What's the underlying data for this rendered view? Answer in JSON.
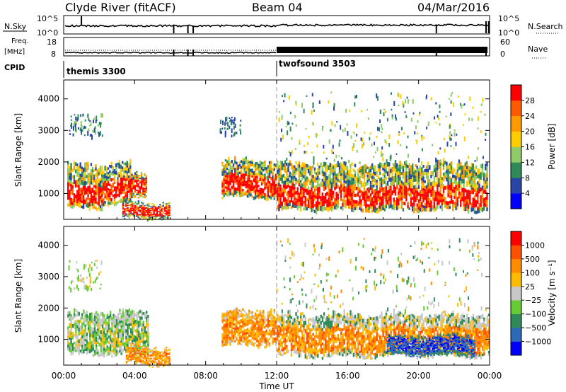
{
  "header": {
    "station": "Clyde River (fitACF)",
    "beam": "Beam 04",
    "date": "04/Mar/2016"
  },
  "noise_panel": {
    "left_label": "N.Sky",
    "left_ticks": [
      "10^5",
      "10^0"
    ],
    "right_ticks": [
      "10^5",
      "10^0"
    ],
    "right_label": "N.Search",
    "right_label_style": "dotted"
  },
  "freq_panel": {
    "left_label_1": "Freq.",
    "left_label_2": "[MHz]",
    "left_ticks": [
      "18",
      "8"
    ],
    "right_ticks": [
      "60",
      "0"
    ],
    "right_label": "Nave",
    "right_label_style": "dotted"
  },
  "cpid": {
    "label": "CPID",
    "modes": [
      {
        "name": "themis 3300",
        "start_hour": 0
      },
      {
        "name": "twofsound 3503",
        "start_hour": 12
      }
    ]
  },
  "x_axis": {
    "label": "Time UT",
    "range_hours": [
      0,
      24
    ],
    "tick_hours": [
      0,
      4,
      8,
      12,
      16,
      20,
      24
    ],
    "tick_labels": [
      "00:00",
      "04:00",
      "08:00",
      "12:00",
      "16:00",
      "20:00",
      "00:00"
    ]
  },
  "power_panel": {
    "ylabel": "Slant Range [km]",
    "ylim": [
      180,
      4600
    ],
    "yticks": [
      1000,
      2000,
      3000,
      4000
    ],
    "colorbar_label": "Power [dB]",
    "colorbar_ticks": [
      "4",
      "8",
      "12",
      "16",
      "20",
      "24",
      "28"
    ],
    "colors": [
      "#0000ff",
      "#2845a8",
      "#2e8b57",
      "#8fcb66",
      "#ffcc00",
      "#ff9900",
      "#ff5a00",
      "#ff0000"
    ]
  },
  "velocity_panel": {
    "ylabel": "Slant Range [km]",
    "ylim": [
      180,
      4600
    ],
    "yticks": [
      1000,
      2000,
      3000,
      4000
    ],
    "colorbar_label": "Velocity [m s⁻¹]",
    "colorbar_ticks": [
      "1000",
      "500",
      "100",
      "25",
      "−25",
      "−100",
      "−500",
      "−1000"
    ],
    "colors": [
      "#0000ff",
      "#2a6ab8",
      "#2e8b57",
      "#66cc33",
      "#c8c8c8",
      "#ffbb00",
      "#ff8c00",
      "#ff5000",
      "#ff0000"
    ]
  },
  "chart_data": {
    "type": "heatmap",
    "x_unit": "hours UT",
    "power_bands": [
      {
        "start": 0.2,
        "end": 2.2,
        "core_km": [
          650,
          1250
        ],
        "outer_km": [
          500,
          1900
        ],
        "color_bias": "strong"
      },
      {
        "start": 2.2,
        "end": 3.8,
        "core_km": [
          800,
          1450
        ],
        "outer_km": [
          650,
          1950
        ],
        "color_bias": "medium"
      },
      {
        "start": 3.8,
        "end": 4.7,
        "core_km": [
          1000,
          1450
        ],
        "outer_km": [
          850,
          1600
        ],
        "color_bias": "strong"
      },
      {
        "start": 3.3,
        "end": 6.0,
        "core_km": [
          300,
          600
        ],
        "outer_km": [
          200,
          700
        ],
        "color_bias": "medium"
      },
      {
        "start": 8.9,
        "end": 12.0,
        "core_km": [
          1000,
          1550
        ],
        "outer_km": [
          850,
          2050
        ],
        "color_bias": "strong"
      },
      {
        "start": 12.0,
        "end": 23.9,
        "core_km": [
          600,
          1200
        ],
        "outer_km": [
          450,
          1950
        ],
        "color_bias": "strong"
      }
    ],
    "velocity_bands": [
      {
        "start": 0.2,
        "end": 4.8,
        "core_km": [
          650,
          1550
        ],
        "outer_km": [
          500,
          1850
        ],
        "palette": "mixed_green_gray"
      },
      {
        "start": 3.5,
        "end": 6.0,
        "core_km": [
          250,
          650
        ],
        "outer_km": [
          200,
          750
        ],
        "palette": "orange"
      },
      {
        "start": 8.9,
        "end": 12.0,
        "core_km": [
          950,
          1650
        ],
        "outer_km": [
          800,
          1900
        ],
        "palette": "orange"
      },
      {
        "start": 12.0,
        "end": 24.0,
        "core_km": [
          600,
          1400
        ],
        "outer_km": [
          450,
          1800
        ],
        "palette": "orange_gray"
      },
      {
        "start": 18.2,
        "end": 23.2,
        "core_km": [
          600,
          1050
        ],
        "outer_km": [
          500,
          1100
        ],
        "palette": "blue"
      }
    ]
  }
}
